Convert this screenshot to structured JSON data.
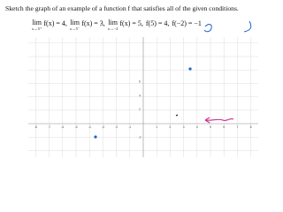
{
  "instruction": "Sketch the graph of an example of a function f that satisfies all of the given conditions.",
  "conditions": [
    {
      "op": "lim",
      "sub": "x→5⁺",
      "expr": "f(x) = 4,"
    },
    {
      "op": "lim",
      "sub": "x→5⁻",
      "expr": "f(x) = 3,"
    },
    {
      "op": "lim",
      "sub": "x→−2",
      "expr": "f(x) = 5,"
    },
    {
      "expr": "f(5) = 4,"
    },
    {
      "expr": "f(−2) = −1"
    }
  ],
  "graph": {
    "x_labels": [
      "-8",
      "-7",
      "-6",
      "-5",
      "-4",
      "-3",
      "-2",
      "-1",
      "1",
      "2",
      "3",
      "4",
      "5",
      "6",
      "7",
      "8"
    ],
    "y_labels": [
      "6",
      "4",
      "2",
      "-2"
    ]
  }
}
